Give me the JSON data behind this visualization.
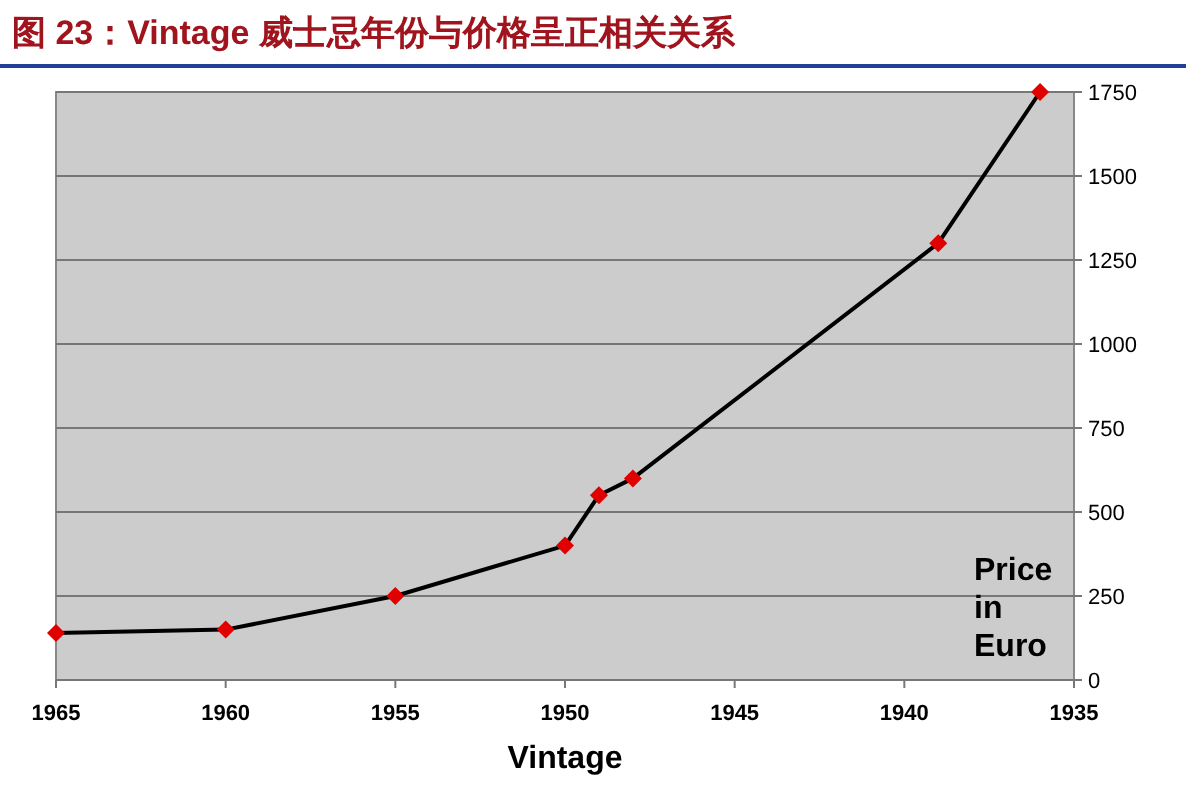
{
  "chart_data": {
    "type": "line",
    "title": "图 23：Vintage 威士忌年份与价格呈正相关关系",
    "xlabel": "Vintage",
    "ylabel": "Price in Euro",
    "x": [
      1965,
      1960,
      1955,
      1950,
      1949,
      1948,
      1939,
      1936
    ],
    "series": [
      {
        "color": "#000000",
        "colors": [
          "#e00000",
          "#e00000",
          "#e00000",
          "#e00000",
          "#e00000",
          "#e00000",
          "#e00000",
          "#e00000"
        ],
        "values": [
          140,
          150,
          250,
          400,
          550,
          600,
          1300,
          1750
        ]
      }
    ],
    "xlim": [
      1965,
      1935
    ],
    "xticks": [
      1965,
      1960,
      1955,
      1950,
      1945,
      1940,
      1935
    ],
    "ylim": [
      0,
      1750
    ],
    "yticks": [
      0,
      250,
      500,
      750,
      1000,
      1250,
      1500,
      1750
    ],
    "grid": "y",
    "marker": "diamond"
  }
}
